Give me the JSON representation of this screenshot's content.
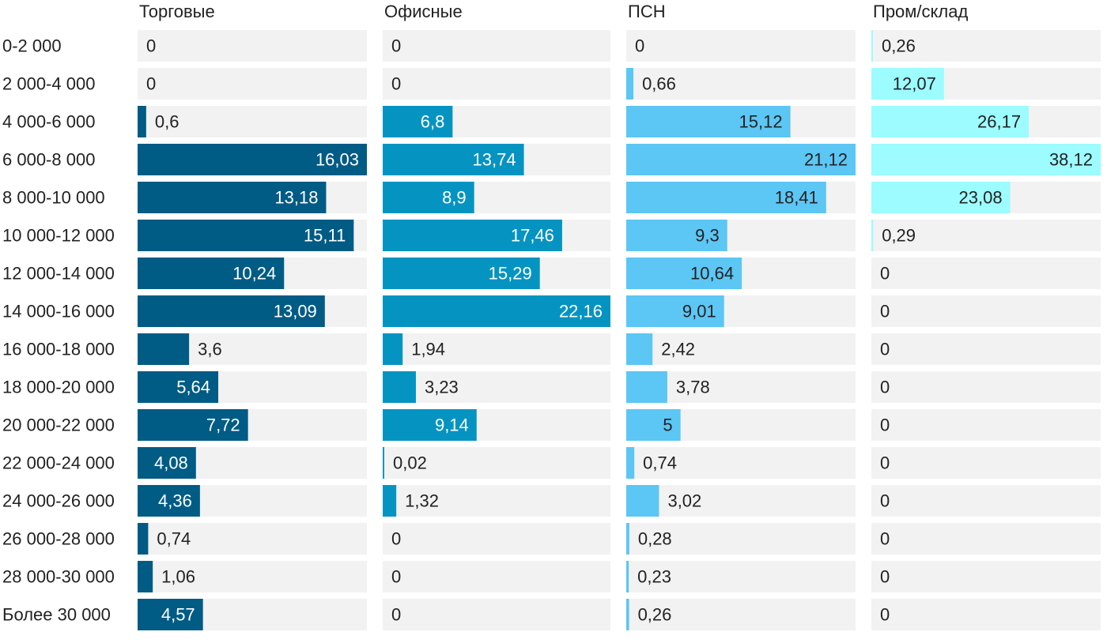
{
  "chart_data": {
    "type": "bar",
    "orientation": "horizontal",
    "layout": "small-multiples",
    "categories": [
      "0-2 000",
      "2 000-4 000",
      "4 000-6 000",
      "6 000-8 000",
      "8 000-10 000",
      "10 000-12 000",
      "12 000-14 000",
      "14 000-16 000",
      "16 000-18 000",
      "18 000-20 000",
      "20 000-22 000",
      "22 000-24 000",
      "24 000-26 000",
      "26 000-28 000",
      "28 000-30 000",
      "Более 30 000"
    ],
    "series": [
      {
        "name": "Торговые",
        "color": "#005b85",
        "label_color": "#ffffff",
        "values": [
          0,
          0,
          0.6,
          16.03,
          13.18,
          15.11,
          10.24,
          13.09,
          3.6,
          5.64,
          7.72,
          4.08,
          4.36,
          0.74,
          1.06,
          4.57
        ],
        "labels": [
          "0",
          "0",
          "0,6",
          "16,03",
          "13,18",
          "15,11",
          "10,24",
          "13,09",
          "3,6",
          "5,64",
          "7,72",
          "4,08",
          "4,36",
          "0,74",
          "1,06",
          "4,57"
        ]
      },
      {
        "name": "Офисные",
        "color": "#0594c2",
        "label_color": "#ffffff",
        "values": [
          0,
          0,
          6.8,
          13.74,
          8.9,
          17.46,
          15.29,
          22.16,
          1.94,
          3.23,
          9.14,
          0.02,
          1.32,
          0,
          0,
          0
        ],
        "labels": [
          "0",
          "0",
          "6,8",
          "13,74",
          "8,9",
          "17,46",
          "15,29",
          "22,16",
          "1,94",
          "3,23",
          "9,14",
          "0,02",
          "1,32",
          "0",
          "0",
          "0"
        ]
      },
      {
        "name": "ПСН",
        "color": "#5cc6f4",
        "label_color": "#222222",
        "values": [
          0,
          0.66,
          15.12,
          21.12,
          18.41,
          9.3,
          10.64,
          9.01,
          2.42,
          3.78,
          5,
          0.74,
          3.02,
          0.28,
          0.23,
          0.26
        ],
        "labels": [
          "0",
          "0,66",
          "15,12",
          "21,12",
          "18,41",
          "9,3",
          "10,64",
          "9,01",
          "2,42",
          "3,78",
          "5",
          "0,74",
          "3,02",
          "0,28",
          "0,23",
          "0,26"
        ]
      },
      {
        "name": "Пром/склад",
        "color": "#9cfcff",
        "label_color": "#222222",
        "values": [
          0.26,
          12.07,
          26.17,
          38.12,
          23.08,
          0.29,
          0,
          0,
          0,
          0,
          0,
          0,
          0,
          0,
          0,
          0
        ],
        "labels": [
          "0,26",
          "12,07",
          "26,17",
          "38,12",
          "23,08",
          "0,29",
          "0",
          "0",
          "0",
          "0",
          "0",
          "0",
          "0",
          "0",
          "0",
          "0"
        ]
      }
    ],
    "track_color": "#f2f2f2",
    "outside_label_color": "#222222",
    "title": "",
    "xlabel": "",
    "ylabel": "",
    "grid": false,
    "legend": "none"
  }
}
